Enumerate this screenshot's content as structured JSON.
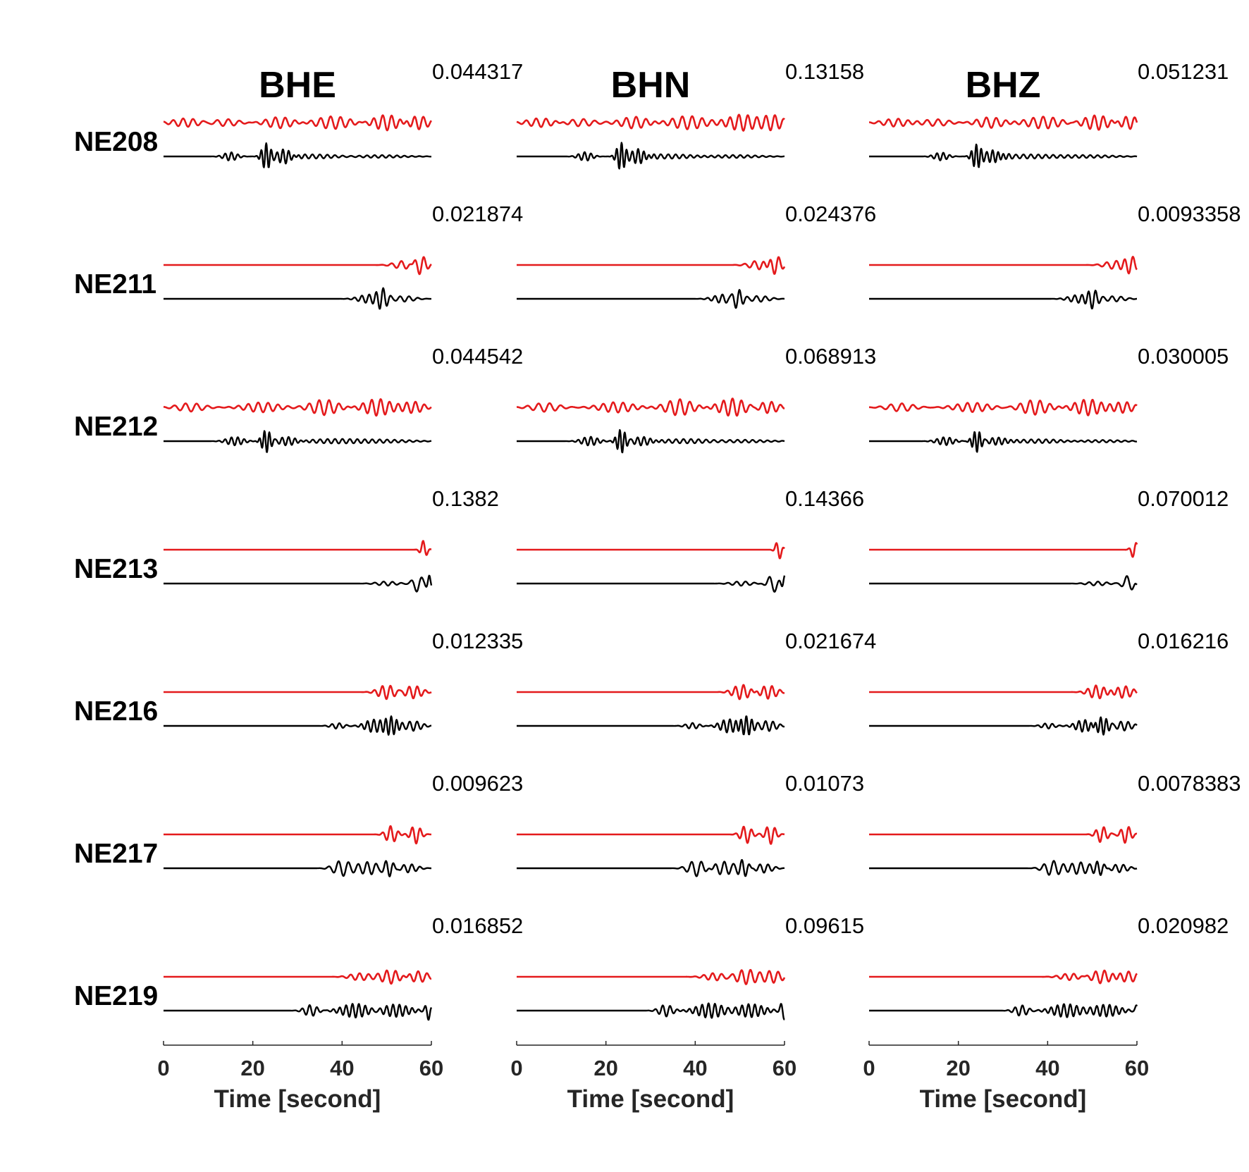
{
  "chart_data": {
    "type": "line",
    "title": "",
    "xlabel": "Time [second]",
    "ylabel": "",
    "xlim": [
      0,
      60
    ],
    "xticks": [
      0,
      20,
      40,
      60
    ],
    "grid": false,
    "legend": "none",
    "colors": {
      "synthetic": "#e41a1c",
      "observed": "#000000"
    },
    "components": [
      "BHE",
      "BHN",
      "BHZ"
    ],
    "stations": [
      {
        "name": "NE208",
        "amplitudes": [
          "0.044317",
          "0.13158",
          "0.051231"
        ]
      },
      {
        "name": "NE211",
        "amplitudes": [
          "0.021874",
          "0.024376",
          "0.0093358"
        ]
      },
      {
        "name": "NE212",
        "amplitudes": [
          "0.044542",
          "0.068913",
          "0.030005"
        ]
      },
      {
        "name": "NE213",
        "amplitudes": [
          "0.1382",
          "0.14366",
          "0.070012"
        ]
      },
      {
        "name": "NE216",
        "amplitudes": [
          "0.012335",
          "0.021674",
          "0.016216"
        ]
      },
      {
        "name": "NE217",
        "amplitudes": [
          "0.009623",
          "0.01073",
          "0.0078383"
        ]
      },
      {
        "name": "NE219",
        "amplitudes": [
          "0.016852",
          "0.09615",
          "0.020982"
        ]
      }
    ]
  }
}
